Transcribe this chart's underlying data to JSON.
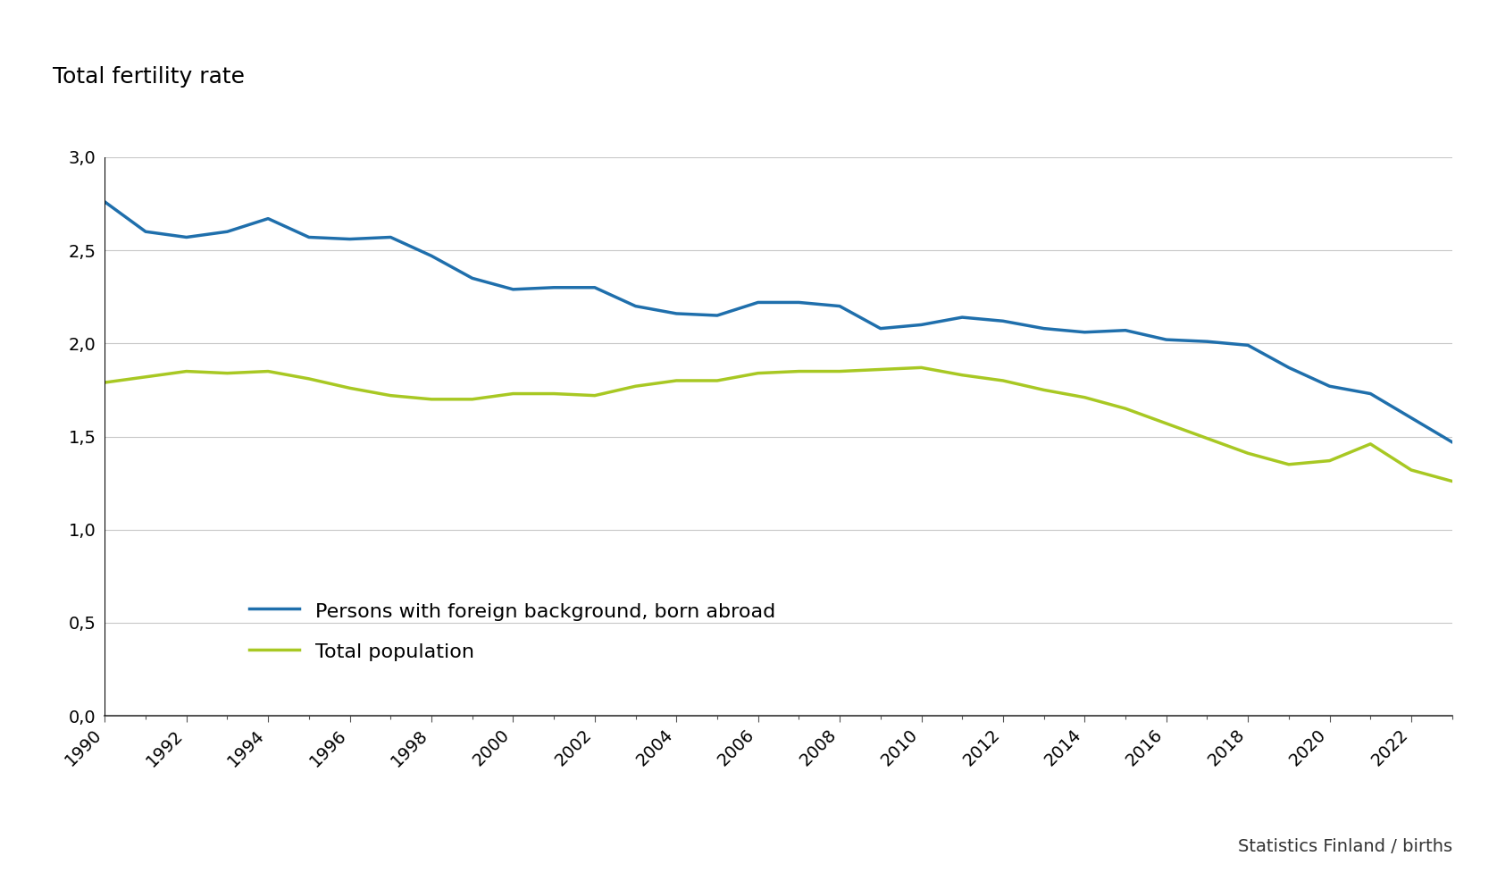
{
  "title": "Total fertility rate",
  "xlabel_source": "Statistics Finland / births",
  "years": [
    1990,
    1991,
    1992,
    1993,
    1994,
    1995,
    1996,
    1997,
    1998,
    1999,
    2000,
    2001,
    2002,
    2003,
    2004,
    2005,
    2006,
    2007,
    2008,
    2009,
    2010,
    2011,
    2012,
    2013,
    2014,
    2015,
    2016,
    2017,
    2018,
    2019,
    2020,
    2021,
    2022,
    2023
  ],
  "foreign_born": [
    2.76,
    2.6,
    2.57,
    2.6,
    2.67,
    2.57,
    2.56,
    2.57,
    2.47,
    2.35,
    2.29,
    2.3,
    2.3,
    2.2,
    2.16,
    2.15,
    2.22,
    2.22,
    2.2,
    2.08,
    2.1,
    2.14,
    2.12,
    2.08,
    2.06,
    2.07,
    2.02,
    2.01,
    1.99,
    1.87,
    1.77,
    1.73,
    1.6,
    1.47
  ],
  "total_population": [
    1.79,
    1.82,
    1.85,
    1.84,
    1.85,
    1.81,
    1.76,
    1.72,
    1.7,
    1.7,
    1.73,
    1.73,
    1.72,
    1.77,
    1.8,
    1.8,
    1.84,
    1.85,
    1.85,
    1.86,
    1.87,
    1.83,
    1.8,
    1.75,
    1.71,
    1.65,
    1.57,
    1.49,
    1.41,
    1.35,
    1.37,
    1.46,
    1.32,
    1.26
  ],
  "line_color_foreign": "#1f6fac",
  "line_color_total": "#a8c823",
  "line_width": 2.5,
  "ylim": [
    0,
    3.0
  ],
  "yticks": [
    0.0,
    0.5,
    1.0,
    1.5,
    2.0,
    2.5,
    3.0
  ],
  "ytick_labels": [
    "0,0",
    "0,5",
    "1,0",
    "1,5",
    "2,0",
    "2,5",
    "3,0"
  ],
  "legend_label_foreign": "Persons with foreign background, born abroad",
  "legend_label_total": "Total population",
  "background_color": "#ffffff",
  "grid_color": "#c8c8c8",
  "title_fontsize": 18,
  "axis_fontsize": 14,
  "legend_fontsize": 16,
  "source_fontsize": 14
}
